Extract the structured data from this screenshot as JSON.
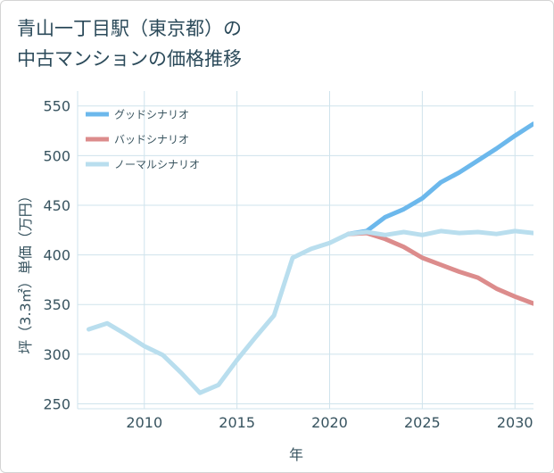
{
  "title_line1": "青山一丁目駅（東京都）の",
  "title_line2": "中古マンションの価格推移",
  "chart_data": {
    "type": "line",
    "xlabel": "年",
    "ylabel": "坪（3.3㎡）単価（万円）",
    "xlim": [
      2006.4,
      2031
    ],
    "ylim": [
      245,
      565
    ],
    "xticks": [
      2010,
      2015,
      2020,
      2025,
      2030
    ],
    "yticks": [
      250,
      300,
      350,
      400,
      450,
      500,
      550
    ],
    "legend_position": "top-left",
    "series": [
      {
        "name": "グッドシナリオ",
        "color": "#6cb8ec",
        "x": [
          2021,
          2022,
          2023,
          2024,
          2025,
          2026,
          2027,
          2028,
          2029,
          2030,
          2031
        ],
        "y": [
          421,
          424,
          438,
          446,
          457,
          473,
          483,
          495,
          507,
          520,
          532
        ]
      },
      {
        "name": "バッドシナリオ",
        "color": "#dc8c8c",
        "x": [
          2021,
          2022,
          2023,
          2024,
          2025,
          2026,
          2027,
          2028,
          2029,
          2030,
          2031
        ],
        "y": [
          421,
          422,
          416,
          408,
          397,
          390,
          383,
          377,
          366,
          358,
          351
        ]
      },
      {
        "name": "ノーマルシナリオ",
        "color": "#b9deee",
        "x": [
          2007,
          2008,
          2009,
          2010,
          2011,
          2012,
          2013,
          2014,
          2015,
          2016,
          2017,
          2018,
          2019,
          2020,
          2021,
          2022,
          2023,
          2024,
          2025,
          2026,
          2027,
          2028,
          2029,
          2030,
          2031
        ],
        "y": [
          325,
          331,
          320,
          308,
          299,
          281,
          261,
          269,
          294,
          317,
          339,
          397,
          406,
          412,
          421,
          423,
          420,
          423,
          420,
          424,
          422,
          423,
          421,
          424,
          422
        ]
      }
    ]
  }
}
